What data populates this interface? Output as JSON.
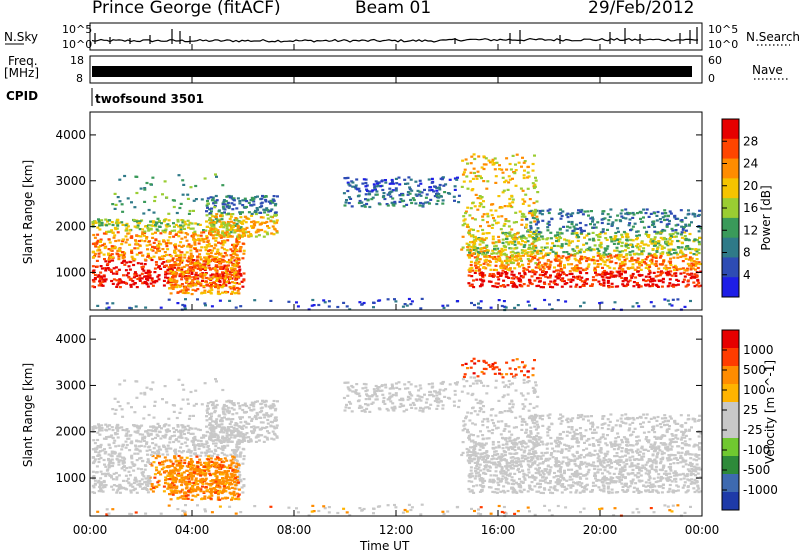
{
  "header": {
    "station": "Prince George (fitACF)",
    "beam": "Beam 01",
    "date": "29/Feb/2012"
  },
  "side_labels": {
    "nsky": "N.Sky",
    "freq_line1": "Freq.",
    "freq_line2": "[MHz]",
    "cpid": "CPID",
    "nsearch": "N.Search",
    "nave": "Nave"
  },
  "noise_axis": {
    "left_top": "10^5",
    "left_bottom": "10^0",
    "right_top": "10^5",
    "right_bottom": "10^0"
  },
  "freq_axis": {
    "left_top": "18",
    "left_bottom": "8",
    "right_top": "60",
    "right_bottom": "0"
  },
  "cpid_text": "twofsound 3501",
  "colors": {
    "power_scale": [
      "#1e1ee6",
      "#2e4cb4",
      "#2f7a88",
      "#3a9a5a",
      "#9acd32",
      "#f5c400",
      "#ff8c00",
      "#ff4500",
      "#e60000"
    ],
    "velocity_scale": [
      "#e60000",
      "#ff3c00",
      "#ff8c00",
      "#ffb400",
      "#c8c8c8",
      "#c8c8c8",
      "#70c830",
      "#2e8a3a",
      "#3e6ab0",
      "#1e3aa8"
    ]
  },
  "chart_data": [
    {
      "type": "heatmap",
      "panel": "power",
      "ylabel": "Slant Range [km]",
      "ylim": [
        180,
        4500
      ],
      "yticks": [
        "1000",
        "2000",
        "3000",
        "4000"
      ],
      "colorbar_label": "Power [dB]",
      "colorbar_ticks": [
        "4",
        "8",
        "12",
        "16",
        "20",
        "24",
        "28"
      ],
      "clim": [
        0,
        30
      ]
    },
    {
      "type": "heatmap",
      "panel": "velocity",
      "ylabel": "Slant Range [km]",
      "ylim": [
        180,
        4500
      ],
      "yticks": [
        "1000",
        "2000",
        "3000",
        "4000"
      ],
      "colorbar_label": "Velocity [m s^-1]",
      "colorbar_ticks": [
        "1000",
        "500",
        "100",
        "25",
        "-25",
        "-100",
        "-500",
        "-1000"
      ]
    }
  ],
  "xaxis": {
    "label": "Time UT",
    "ticks": [
      "00:00",
      "04:00",
      "08:00",
      "12:00",
      "16:00",
      "20:00",
      "00:00"
    ]
  }
}
